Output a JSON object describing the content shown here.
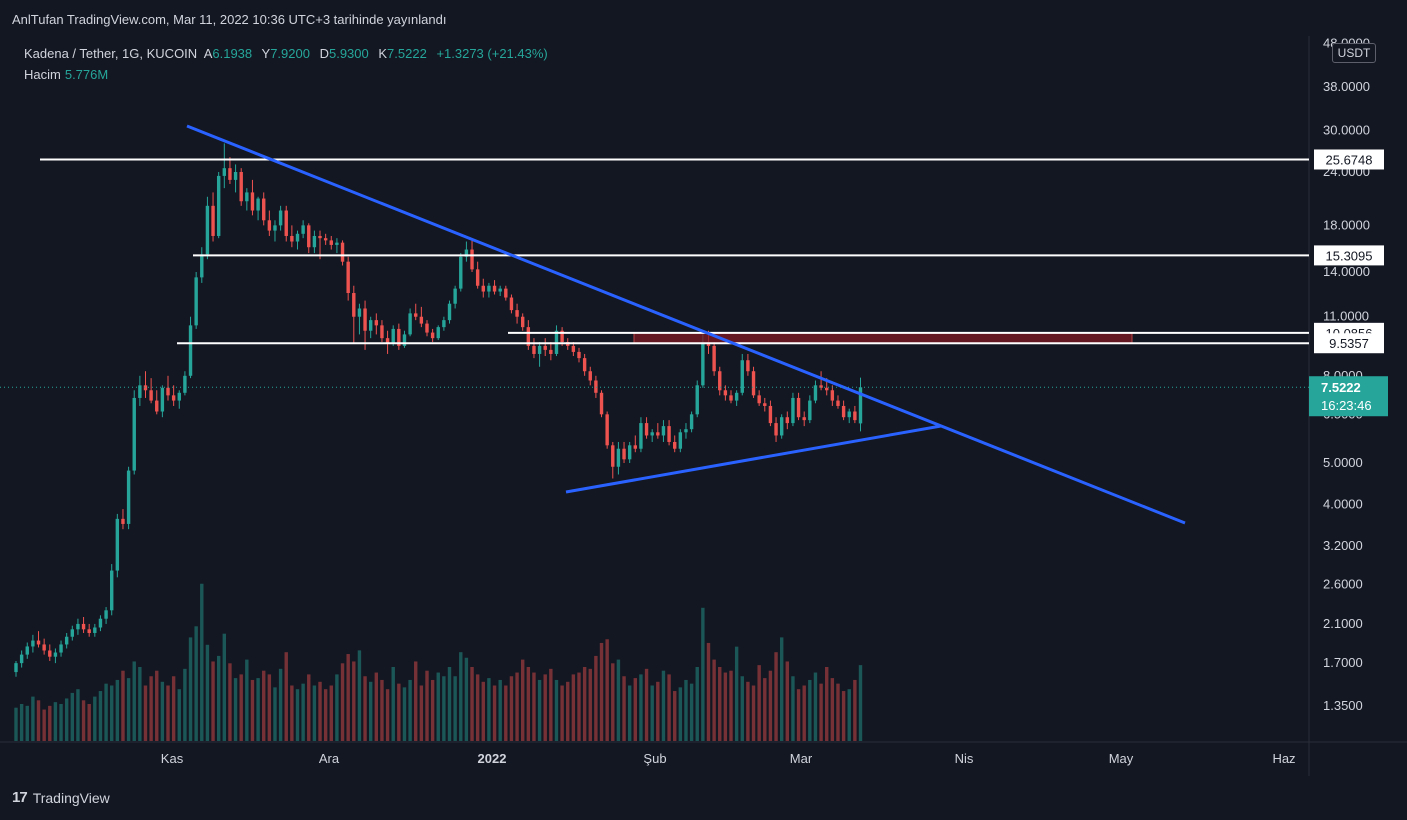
{
  "header": {
    "published": "AnlTufan TradingView.com, Mar 11, 2022 10:36 UTC+3 tarihinde yayınlandı"
  },
  "legend": {
    "symbol": "Kadena / Tether, 1G, KUCOIN",
    "open_label": "A",
    "open": "6.1938",
    "high_label": "Y",
    "high": "7.9200",
    "low_label": "D",
    "low": "5.9300",
    "close_label": "K",
    "close": "7.5222",
    "change": "+1.3273 (+21.43%)",
    "volume_label": "Hacim",
    "volume": "5.776M"
  },
  "unit": "USDT",
  "price_tag": {
    "price": "7.5222",
    "countdown": "16:23:46"
  },
  "footer": {
    "logo_mark": "17",
    "logo_text": "TradingView"
  },
  "colors": {
    "up": "#26a69a",
    "down": "#ef5350",
    "trend": "#2962ff",
    "level": "#ffffff",
    "zone": "#801922",
    "bg": "#131722"
  },
  "chart_data": {
    "type": "candlestick",
    "scale": "log",
    "y_ticks": [
      "48.0000",
      "38.0000",
      "30.0000",
      "24.0000",
      "18.0000",
      "14.0000",
      "11.0000",
      "8.0000",
      "6.5000",
      "5.0000",
      "4.0000",
      "3.2000",
      "2.6000",
      "2.1000",
      "1.7000",
      "1.3500"
    ],
    "x_ticks": [
      "Kas",
      "Ara",
      "2022",
      "Şub",
      "Mar",
      "Nis",
      "May",
      "Haz"
    ],
    "levels": [
      "25.6748",
      "15.3095",
      "10.0856",
      "9.5357"
    ],
    "zone": {
      "from": "9.5357",
      "to": "10.0856"
    },
    "last_close": 7.5222,
    "candles": [
      [
        1.62,
        1.72,
        1.58,
        1.7
      ],
      [
        1.7,
        1.82,
        1.66,
        1.78
      ],
      [
        1.78,
        1.9,
        1.74,
        1.86
      ],
      [
        1.86,
        1.98,
        1.8,
        1.92
      ],
      [
        1.92,
        2.02,
        1.85,
        1.88
      ],
      [
        1.88,
        1.94,
        1.78,
        1.82
      ],
      [
        1.82,
        1.88,
        1.72,
        1.76
      ],
      [
        1.76,
        1.84,
        1.7,
        1.8
      ],
      [
        1.8,
        1.92,
        1.76,
        1.88
      ],
      [
        1.88,
        2.0,
        1.84,
        1.96
      ],
      [
        1.96,
        2.08,
        1.92,
        2.04
      ],
      [
        2.04,
        2.16,
        1.98,
        2.1
      ],
      [
        2.1,
        2.18,
        2.0,
        2.04
      ],
      [
        2.04,
        2.1,
        1.96,
        2.0
      ],
      [
        2.0,
        2.1,
        1.96,
        2.06
      ],
      [
        2.06,
        2.2,
        2.02,
        2.16
      ],
      [
        2.16,
        2.3,
        2.1,
        2.26
      ],
      [
        2.26,
        2.9,
        2.2,
        2.8
      ],
      [
        2.8,
        3.8,
        2.7,
        3.7
      ],
      [
        3.7,
        3.9,
        3.5,
        3.6
      ],
      [
        3.6,
        4.9,
        3.5,
        4.8
      ],
      [
        4.8,
        7.4,
        4.7,
        7.1
      ],
      [
        7.1,
        8.0,
        6.8,
        7.6
      ],
      [
        7.6,
        8.2,
        7.1,
        7.4
      ],
      [
        7.4,
        7.9,
        6.9,
        7.0
      ],
      [
        7.0,
        7.4,
        6.5,
        6.6
      ],
      [
        6.6,
        7.6,
        6.4,
        7.5
      ],
      [
        7.5,
        8.0,
        7.0,
        7.2
      ],
      [
        7.2,
        7.6,
        6.8,
        7.0
      ],
      [
        7.0,
        7.4,
        6.7,
        7.3
      ],
      [
        7.3,
        8.2,
        7.2,
        8.0
      ],
      [
        8.0,
        11.0,
        7.9,
        10.5
      ],
      [
        10.5,
        14.0,
        10.3,
        13.6
      ],
      [
        13.6,
        16.0,
        13.2,
        15.4
      ],
      [
        15.4,
        21.0,
        15.0,
        20.0
      ],
      [
        20.0,
        21.5,
        16.5,
        17.0
      ],
      [
        17.0,
        24.0,
        16.8,
        23.5
      ],
      [
        23.5,
        28.0,
        22.0,
        24.5
      ],
      [
        24.5,
        26.0,
        22.5,
        23.0
      ],
      [
        23.0,
        25.0,
        21.5,
        24.0
      ],
      [
        24.0,
        24.5,
        20.0,
        20.5
      ],
      [
        20.5,
        22.0,
        19.5,
        21.5
      ],
      [
        21.5,
        23.0,
        19.0,
        19.5
      ],
      [
        19.5,
        21.0,
        18.5,
        20.8
      ],
      [
        20.8,
        21.5,
        18.0,
        18.5
      ],
      [
        18.5,
        19.5,
        17.0,
        17.5
      ],
      [
        17.5,
        18.5,
        16.5,
        18.0
      ],
      [
        18.0,
        20.0,
        17.5,
        19.5
      ],
      [
        19.5,
        20.0,
        16.5,
        17.0
      ],
      [
        17.0,
        18.0,
        16.0,
        16.5
      ],
      [
        16.5,
        17.5,
        15.8,
        17.2
      ],
      [
        17.2,
        18.5,
        16.8,
        18.0
      ],
      [
        18.0,
        18.2,
        15.5,
        16.0
      ],
      [
        16.0,
        17.5,
        15.5,
        17.0
      ],
      [
        17.0,
        17.5,
        15.0,
        16.8
      ],
      [
        16.8,
        17.2,
        16.2,
        16.6
      ],
      [
        16.6,
        17.0,
        15.8,
        16.2
      ],
      [
        16.2,
        16.8,
        15.5,
        16.4
      ],
      [
        16.4,
        16.6,
        14.5,
        14.8
      ],
      [
        14.8,
        15.2,
        12.0,
        12.5
      ],
      [
        12.5,
        13.0,
        9.5,
        11.0
      ],
      [
        11.0,
        11.8,
        10.0,
        11.5
      ],
      [
        11.5,
        12.0,
        9.2,
        10.2
      ],
      [
        10.2,
        11.0,
        9.8,
        10.8
      ],
      [
        10.8,
        11.2,
        10.0,
        10.5
      ],
      [
        10.5,
        10.8,
        9.6,
        9.8
      ],
      [
        9.8,
        10.2,
        9.0,
        9.5
      ],
      [
        9.5,
        10.5,
        9.4,
        10.3
      ],
      [
        10.3,
        10.6,
        9.2,
        9.4
      ],
      [
        9.4,
        10.2,
        9.3,
        10.0
      ],
      [
        10.0,
        11.5,
        9.9,
        11.2
      ],
      [
        11.2,
        11.8,
        10.8,
        11.0
      ],
      [
        11.0,
        11.6,
        10.4,
        10.6
      ],
      [
        10.6,
        10.8,
        9.9,
        10.1
      ],
      [
        10.1,
        10.3,
        9.6,
        9.8
      ],
      [
        9.8,
        10.5,
        9.7,
        10.4
      ],
      [
        10.4,
        11.0,
        10.2,
        10.8
      ],
      [
        10.8,
        12.0,
        10.6,
        11.8
      ],
      [
        11.8,
        13.0,
        11.5,
        12.8
      ],
      [
        12.8,
        15.5,
        12.6,
        15.2
      ],
      [
        15.2,
        16.5,
        14.8,
        15.8
      ],
      [
        15.8,
        16.8,
        14.0,
        14.2
      ],
      [
        14.2,
        14.8,
        12.8,
        13.0
      ],
      [
        13.0,
        13.5,
        12.2,
        12.6
      ],
      [
        12.6,
        13.2,
        12.2,
        13.0
      ],
      [
        13.0,
        13.4,
        12.4,
        12.6
      ],
      [
        12.6,
        13.0,
        12.3,
        12.8
      ],
      [
        12.8,
        13.0,
        12.0,
        12.2
      ],
      [
        12.2,
        12.4,
        11.2,
        11.4
      ],
      [
        11.4,
        11.8,
        10.6,
        11.0
      ],
      [
        11.0,
        11.2,
        10.2,
        10.4
      ],
      [
        10.4,
        10.8,
        9.2,
        9.4
      ],
      [
        9.4,
        9.8,
        8.8,
        9.0
      ],
      [
        9.0,
        9.6,
        8.4,
        9.4
      ],
      [
        9.4,
        9.8,
        8.9,
        9.2
      ],
      [
        9.2,
        9.6,
        8.7,
        9.0
      ],
      [
        9.0,
        10.5,
        8.9,
        10.2
      ],
      [
        10.2,
        10.4,
        9.4,
        9.6
      ],
      [
        9.6,
        9.8,
        9.2,
        9.4
      ],
      [
        9.4,
        9.6,
        8.9,
        9.1
      ],
      [
        9.1,
        9.3,
        8.6,
        8.8
      ],
      [
        8.8,
        9.0,
        8.0,
        8.2
      ],
      [
        8.2,
        8.4,
        7.6,
        7.8
      ],
      [
        7.8,
        8.0,
        7.1,
        7.3
      ],
      [
        7.3,
        7.4,
        6.4,
        6.5
      ],
      [
        6.5,
        6.6,
        5.4,
        5.5
      ],
      [
        5.5,
        5.6,
        4.6,
        4.9
      ],
      [
        4.9,
        5.6,
        4.7,
        5.4
      ],
      [
        5.4,
        5.6,
        5.0,
        5.1
      ],
      [
        5.1,
        5.6,
        5.0,
        5.5
      ],
      [
        5.5,
        5.8,
        5.3,
        5.4
      ],
      [
        5.4,
        6.4,
        5.3,
        6.2
      ],
      [
        6.2,
        6.4,
        5.7,
        5.8
      ],
      [
        5.8,
        6.0,
        5.6,
        5.9
      ],
      [
        5.9,
        6.2,
        5.7,
        5.8
      ],
      [
        5.8,
        6.3,
        5.6,
        6.1
      ],
      [
        6.1,
        6.3,
        5.5,
        5.6
      ],
      [
        5.6,
        5.8,
        5.3,
        5.4
      ],
      [
        5.4,
        6.0,
        5.3,
        5.9
      ],
      [
        5.9,
        6.2,
        5.7,
        6.0
      ],
      [
        6.0,
        6.6,
        5.9,
        6.5
      ],
      [
        6.5,
        7.8,
        6.4,
        7.6
      ],
      [
        7.6,
        10.0,
        7.5,
        9.6
      ],
      [
        9.6,
        10.2,
        9.0,
        9.4
      ],
      [
        9.4,
        9.6,
        8.0,
        8.2
      ],
      [
        8.2,
        8.4,
        7.2,
        7.4
      ],
      [
        7.4,
        7.6,
        7.0,
        7.2
      ],
      [
        7.2,
        7.4,
        6.9,
        7.0
      ],
      [
        7.0,
        7.4,
        6.8,
        7.3
      ],
      [
        7.3,
        9.0,
        7.2,
        8.7
      ],
      [
        8.7,
        9.0,
        8.0,
        8.2
      ],
      [
        8.2,
        8.4,
        7.1,
        7.2
      ],
      [
        7.2,
        7.4,
        6.8,
        6.9
      ],
      [
        6.9,
        7.1,
        6.6,
        6.8
      ],
      [
        6.8,
        7.0,
        6.1,
        6.2
      ],
      [
        6.2,
        6.4,
        5.6,
        5.8
      ],
      [
        5.8,
        6.5,
        5.7,
        6.4
      ],
      [
        6.4,
        6.6,
        6.0,
        6.2
      ],
      [
        6.2,
        7.3,
        6.1,
        7.1
      ],
      [
        7.1,
        7.3,
        6.3,
        6.4
      ],
      [
        6.4,
        6.6,
        6.1,
        6.3
      ],
      [
        6.3,
        7.2,
        6.2,
        7.0
      ],
      [
        7.0,
        7.8,
        6.9,
        7.6
      ],
      [
        7.6,
        8.2,
        7.4,
        7.5
      ],
      [
        7.5,
        7.9,
        7.2,
        7.4
      ],
      [
        7.4,
        7.6,
        6.8,
        7.0
      ],
      [
        7.0,
        7.2,
        6.7,
        6.8
      ],
      [
        6.8,
        7.0,
        6.3,
        6.4
      ],
      [
        6.4,
        6.7,
        6.2,
        6.6
      ],
      [
        6.6,
        6.8,
        6.2,
        6.3
      ],
      [
        6.19,
        7.92,
        5.93,
        7.52
      ]
    ],
    "volumes": [
      18,
      20,
      19,
      24,
      22,
      17,
      19,
      21,
      20,
      23,
      26,
      28,
      22,
      20,
      24,
      27,
      31,
      30,
      33,
      38,
      34,
      43,
      40,
      30,
      35,
      38,
      32,
      30,
      35,
      28,
      39,
      56,
      62,
      85,
      52,
      43,
      46,
      58,
      42,
      34,
      36,
      44,
      33,
      34,
      38,
      36,
      29,
      39,
      48,
      30,
      28,
      31,
      36,
      30,
      32,
      28,
      30,
      36,
      42,
      47,
      43,
      49,
      35,
      32,
      37,
      33,
      28,
      40,
      31,
      29,
      33,
      43,
      30,
      38,
      33,
      37,
      35,
      40,
      35,
      48,
      45,
      40,
      36,
      32,
      34,
      30,
      33,
      30,
      35,
      37,
      44,
      40,
      37,
      33,
      36,
      39,
      33,
      30,
      32,
      36,
      37,
      40,
      39,
      46,
      53,
      55,
      42,
      44,
      35,
      30,
      34,
      36,
      39,
      30,
      32,
      38,
      36,
      27,
      29,
      33,
      31,
      40,
      72,
      53,
      44,
      40,
      37,
      38,
      51,
      35,
      32,
      30,
      41,
      34,
      38,
      48,
      56,
      43,
      35,
      28,
      30,
      33,
      37,
      31,
      40,
      34,
      31,
      27,
      28,
      33,
      41
    ]
  }
}
